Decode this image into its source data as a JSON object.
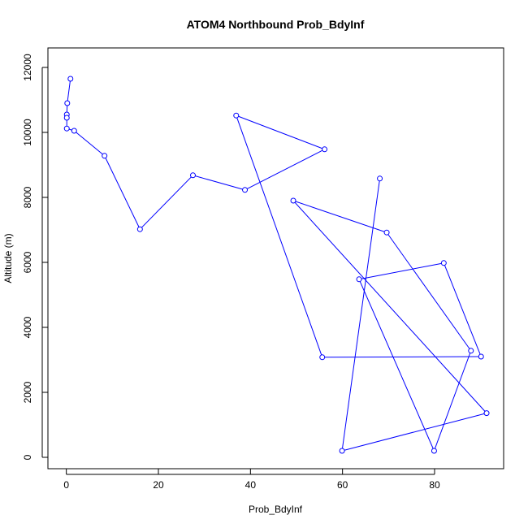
{
  "chart_data": {
    "type": "line",
    "title": "ATOM4 Northbound Prob_BdyInf",
    "xlabel": "Prob_BdyInf",
    "ylabel": "Altitude (m)",
    "xlim": [
      -4,
      95
    ],
    "ylim": [
      -350,
      12600
    ],
    "xticks": [
      0,
      20,
      40,
      60,
      80
    ],
    "yticks": [
      0,
      2000,
      4000,
      6000,
      8000,
      10000,
      12000
    ],
    "grid": false,
    "colors": {
      "series": "#0000ff"
    },
    "series": [
      {
        "points": [
          {
            "x": 0.9,
            "y": 11650
          },
          {
            "x": 0.2,
            "y": 10900
          },
          {
            "x": 0.1,
            "y": 10550
          },
          {
            "x": 0.1,
            "y": 10450
          },
          {
            "x": 0.1,
            "y": 10120
          },
          {
            "x": 1.7,
            "y": 10050
          },
          {
            "x": 8.3,
            "y": 9280
          },
          {
            "x": 16.0,
            "y": 7020
          },
          {
            "x": 27.5,
            "y": 8680
          },
          {
            "x": 38.8,
            "y": 8230
          },
          {
            "x": 56.1,
            "y": 9480
          },
          {
            "x": 36.9,
            "y": 10520
          },
          {
            "x": 55.6,
            "y": 3080
          },
          {
            "x": 90.1,
            "y": 3100
          },
          {
            "x": 82.0,
            "y": 5980
          },
          {
            "x": 63.6,
            "y": 5480
          },
          {
            "x": 79.9,
            "y": 200
          },
          {
            "x": 87.9,
            "y": 3280
          },
          {
            "x": 69.6,
            "y": 6920
          },
          {
            "x": 49.3,
            "y": 7900
          },
          {
            "x": 91.3,
            "y": 1360
          },
          {
            "x": 59.9,
            "y": 200
          },
          {
            "x": 68.1,
            "y": 8580
          }
        ]
      }
    ]
  }
}
